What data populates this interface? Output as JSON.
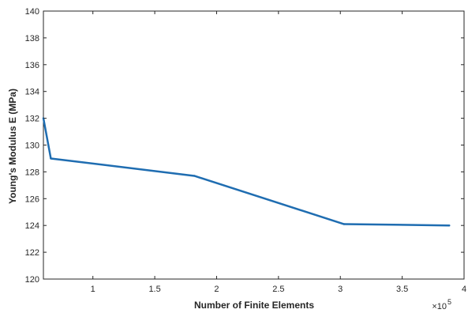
{
  "chart_data": {
    "type": "line",
    "xlabel": "Number of Finite Elements",
    "ylabel": "Young's Modulus E (MPa)",
    "x_exponent_label": "×10",
    "x_exponent_power": "5",
    "xlim": [
      0.6,
      4.0
    ],
    "ylim": [
      120,
      140
    ],
    "xticks": [
      1,
      1.5,
      2,
      2.5,
      3,
      3.5,
      4
    ],
    "xtick_labels": [
      "1",
      "1.5",
      "2",
      "2.5",
      "3",
      "3.5",
      "4"
    ],
    "yticks": [
      120,
      122,
      124,
      126,
      128,
      130,
      132,
      134,
      136,
      138,
      140
    ],
    "ytick_labels": [
      "120",
      "122",
      "124",
      "126",
      "128",
      "130",
      "132",
      "134",
      "136",
      "138",
      "140"
    ],
    "grid": true,
    "series": [
      {
        "color": "#1f6db1",
        "x": [
          0.6,
          0.66,
          1.82,
          3.03,
          3.88
        ],
        "y": [
          132,
          129,
          127.7,
          124.1,
          124
        ]
      }
    ]
  }
}
